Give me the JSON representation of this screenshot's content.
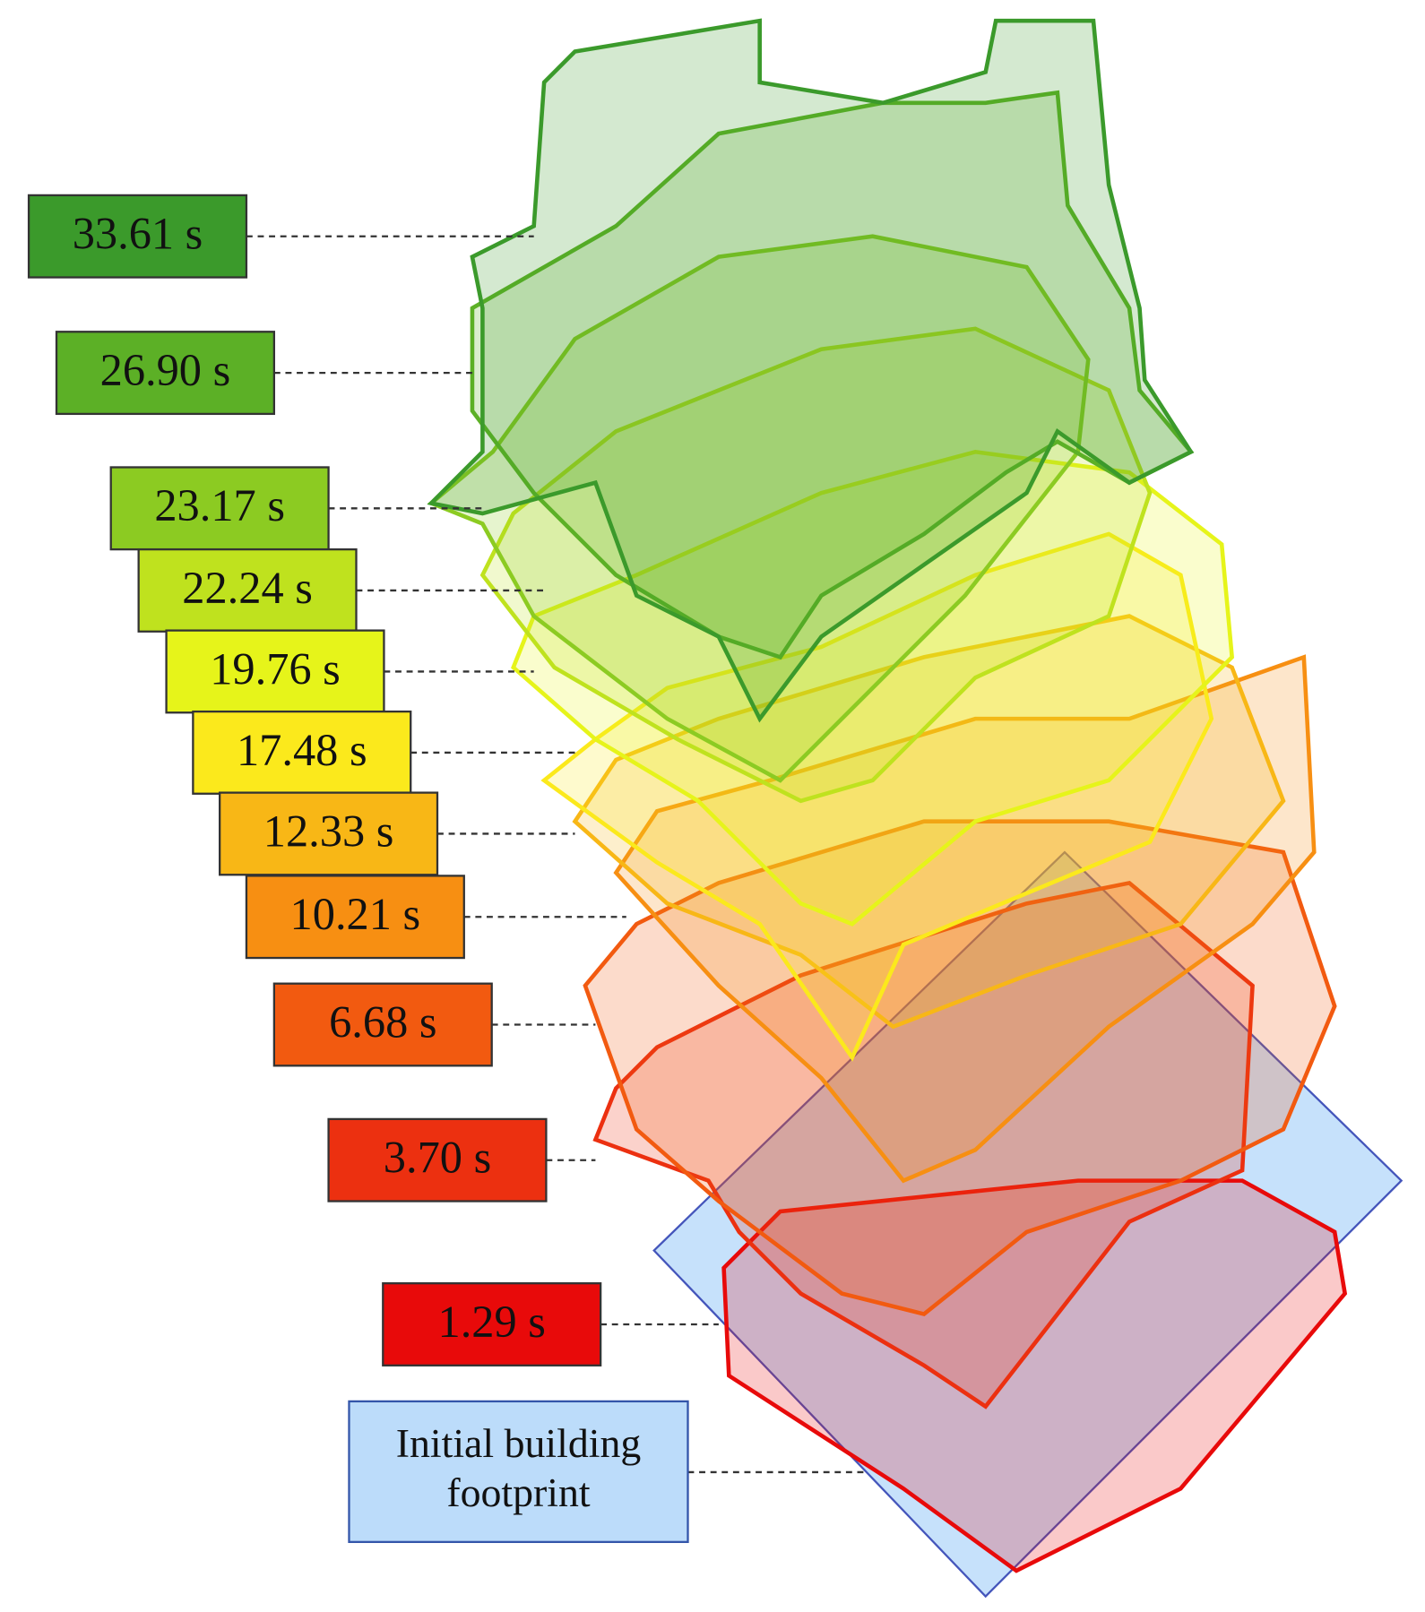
{
  "labels": [
    {
      "text": "33.61 s",
      "color": "#3b9a2b"
    },
    {
      "text": "26.90 s",
      "color": "#5cb026"
    },
    {
      "text": "23.17 s",
      "color": "#8ccb22"
    },
    {
      "text": "22.24 s",
      "color": "#bfe21e"
    },
    {
      "text": "19.76 s",
      "color": "#e6f41a"
    },
    {
      "text": "17.48 s",
      "color": "#fbe91c"
    },
    {
      "text": "12.33 s",
      "color": "#f8b716"
    },
    {
      "text": "10.21 s",
      "color": "#f78f12"
    },
    {
      "text": "6.68 s",
      "color": "#f25a10"
    },
    {
      "text": "3.70 s",
      "color": "#ec3010"
    },
    {
      "text": "1.29 s",
      "color": "#e80a0a"
    }
  ],
  "footprint": {
    "lines": [
      "Initial building",
      "footprint"
    ],
    "color": "#bcdcfa"
  }
}
